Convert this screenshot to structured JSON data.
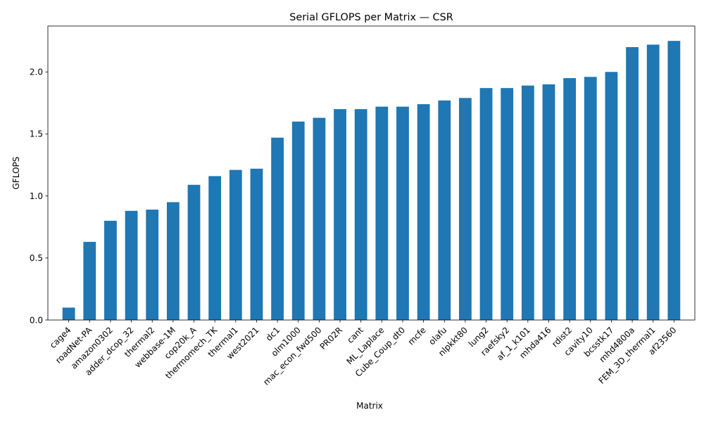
{
  "chart_data": {
    "type": "bar",
    "title": "Serial GFLOPS per Matrix — CSR",
    "xlabel": "Matrix",
    "ylabel": "GFLOPS",
    "ylim": [
      0,
      2.37
    ],
    "yticks": [
      0.0,
      0.5,
      1.0,
      1.5,
      2.0
    ],
    "ytick_labels": [
      "0.0",
      "0.5",
      "1.0",
      "1.5",
      "2.0"
    ],
    "grid": false,
    "legend": "none",
    "bar_color": "#1f77b4",
    "categories": [
      "cage4",
      "roadNet-PA",
      "amazon0302",
      "adder_dcop_32",
      "thermal2",
      "webbase-1M",
      "cop20k_A",
      "thermomech_TK",
      "thermal1",
      "west2021",
      "dc1",
      "olm1000",
      "mac_econ_fwd500",
      "PR02R",
      "cant",
      "ML_Laplace",
      "Cube_Coup_dt0",
      "mcfe",
      "olafu",
      "nlpkkt80",
      "lung2",
      "raefsky2",
      "af_1_k101",
      "mhda416",
      "rdist2",
      "cavity10",
      "bcsstk17",
      "mhd4800a",
      "FEM_3D_thermal1",
      "af23560"
    ],
    "values": [
      0.1,
      0.63,
      0.8,
      0.88,
      0.89,
      0.95,
      1.09,
      1.16,
      1.21,
      1.22,
      1.47,
      1.6,
      1.63,
      1.7,
      1.7,
      1.72,
      1.72,
      1.74,
      1.77,
      1.79,
      1.87,
      1.87,
      1.89,
      1.9,
      1.95,
      1.96,
      2.0,
      2.2,
      2.22,
      2.25
    ]
  }
}
